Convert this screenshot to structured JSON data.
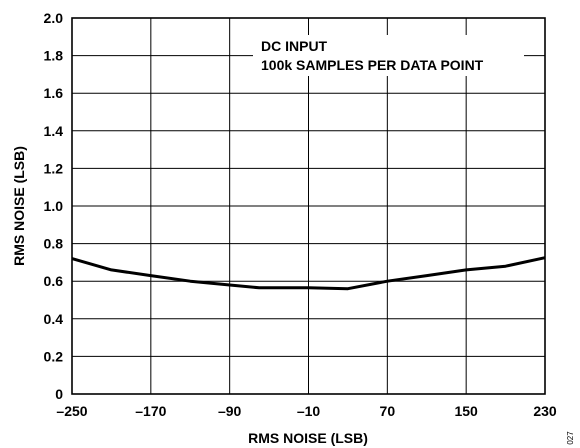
{
  "chart_data": {
    "type": "line",
    "title": "",
    "xlabel": "RMS NOISE (LSB)",
    "ylabel": "RMS NOISE (LSB)",
    "xlim": [
      -250,
      230
    ],
    "ylim": [
      0,
      2.0
    ],
    "x_ticks": [
      "–250",
      "–170",
      "–90",
      "–10",
      "70",
      "150",
      "230"
    ],
    "y_ticks": [
      "0",
      "0.2",
      "0.4",
      "0.6",
      "0.8",
      "1.0",
      "1.2",
      "1.4",
      "1.6",
      "1.8",
      "2.0"
    ],
    "grid": true,
    "annotations": [
      "DC INPUT",
      "100k SAMPLES PER DATA POINT"
    ],
    "figure_id": "027",
    "series": [
      {
        "x": [
          -250,
          -210,
          -170,
          -130,
          -90,
          -60,
          -10,
          30,
          70,
          110,
          150,
          190,
          230
        ],
        "y": [
          0.72,
          0.66,
          0.63,
          0.6,
          0.58,
          0.565,
          0.565,
          0.56,
          0.6,
          0.63,
          0.66,
          0.68,
          0.725
        ]
      }
    ]
  }
}
